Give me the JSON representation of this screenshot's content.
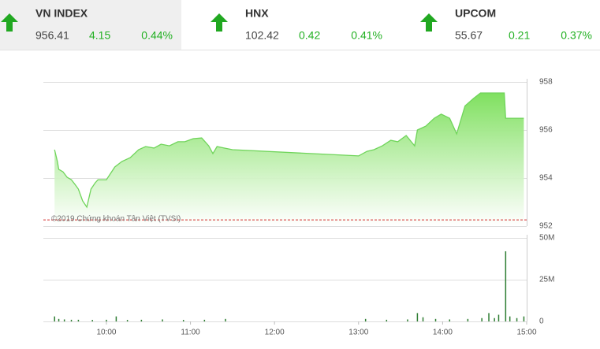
{
  "header": {
    "tickers": [
      {
        "name": "VN INDEX",
        "value": 956.41,
        "change": 4.15,
        "percent": "0.44%"
      },
      {
        "name": "HNX",
        "value": 102.42,
        "change": 0.42,
        "percent": "0.41%"
      },
      {
        "name": "UPCOM",
        "value": 55.67,
        "change": 0.21,
        "percent": "0.37%"
      }
    ]
  },
  "chart_data": [
    {
      "type": "area",
      "annotation": "©2019 Chứng khoán Tân Việt (TVSI)",
      "reference": 952.26,
      "color": "#6fd45a",
      "x": [
        563,
        565,
        566,
        569,
        572,
        575,
        578,
        580,
        583,
        586,
        589,
        592,
        594,
        600,
        606,
        611,
        617,
        623,
        628,
        634,
        639,
        645,
        651,
        656,
        662,
        668,
        673,
        676,
        679,
        684,
        690,
        780,
        786,
        791,
        797,
        803,
        808,
        814,
        820,
        822,
        828,
        834,
        839,
        845,
        850,
        856,
        862,
        867,
        873,
        884,
        885,
        890,
        898
      ],
      "values": [
        955.18,
        954.69,
        954.36,
        954.26,
        954.03,
        953.93,
        953.7,
        953.54,
        953.05,
        952.79,
        953.54,
        953.8,
        953.93,
        953.93,
        954.46,
        954.69,
        954.85,
        955.18,
        955.31,
        955.25,
        955.41,
        955.34,
        955.51,
        955.51,
        955.64,
        955.67,
        955.34,
        955.02,
        955.31,
        955.25,
        955.18,
        954.92,
        955.11,
        955.18,
        955.34,
        955.57,
        955.51,
        955.77,
        955.34,
        956.0,
        956.16,
        956.49,
        956.66,
        956.49,
        955.84,
        957.0,
        957.31,
        957.54,
        957.54,
        957.54,
        956.49,
        956.49,
        956.49
      ],
      "xlim": [
        555,
        900
      ],
      "ylim": [
        952,
        958
      ],
      "yticks": [
        952,
        954,
        956,
        958
      ],
      "grid": true
    },
    {
      "type": "bar",
      "color": "#2e7d32",
      "x": [
        563,
        566,
        570,
        575,
        580,
        590,
        600,
        607,
        615,
        625,
        640,
        655,
        670,
        685,
        785,
        800,
        815,
        822,
        826,
        835,
        845,
        858,
        868,
        873,
        877,
        880,
        885,
        888,
        893,
        898
      ],
      "values": [
        3000000,
        1500000,
        1200000,
        1000000,
        1000000,
        900000,
        1000000,
        3000000,
        900000,
        1000000,
        1200000,
        900000,
        1000000,
        1500000,
        1500000,
        1000000,
        1200000,
        5000000,
        2500000,
        1500000,
        1200000,
        1500000,
        2000000,
        5000000,
        2000000,
        4000000,
        42000000,
        3000000,
        2000000,
        3000000
      ],
      "xlim": [
        555,
        900
      ],
      "xticks": [
        {
          "value": 600,
          "label": "10:00"
        },
        {
          "value": 660,
          "label": "11:00"
        },
        {
          "value": 720,
          "label": "12:00"
        },
        {
          "value": 780,
          "label": "13:00"
        },
        {
          "value": 840,
          "label": "14:00"
        },
        {
          "value": 900,
          "label": "15:00"
        }
      ],
      "ylim": [
        0,
        50000000
      ],
      "yticks": [
        0,
        {
          "value": 25000000,
          "label": "25M"
        },
        {
          "value": 50000000,
          "label": "50M"
        }
      ],
      "grid": true
    }
  ]
}
